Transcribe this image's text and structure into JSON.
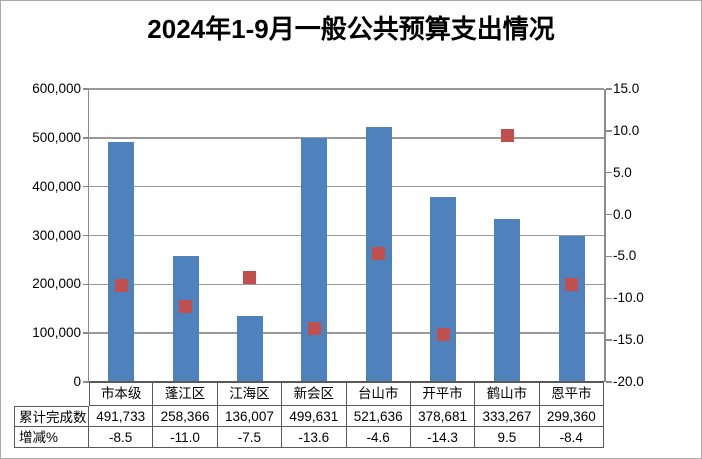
{
  "title": "2024年1-9月一般公共预算支出情况",
  "colors": {
    "bar": "#4F81BD",
    "marker": "#C0504D",
    "gridline": "#999999",
    "axis": "#8C8C8C",
    "x_axis": "#595959",
    "table_border": "#595959",
    "text": "#000000"
  },
  "chart_data": {
    "type": "bar",
    "title": "2024年1-9月一般公共预算支出情况",
    "categories": [
      "市本级",
      "蓬江区",
      "江海区",
      "新会区",
      "台山市",
      "开平市",
      "鹤山市",
      "恩平市"
    ],
    "series": [
      {
        "name": "累计完成数",
        "chart_type": "bar",
        "axis": "left",
        "color": "#4F81BD",
        "values": [
          491733,
          258366,
          136007,
          499631,
          521636,
          378681,
          333267,
          299360
        ]
      },
      {
        "name": "增减%",
        "chart_type": "scatter",
        "axis": "right",
        "color": "#C0504D",
        "values": [
          -8.5,
          -11.0,
          -7.5,
          -13.6,
          -4.6,
          -14.3,
          9.5,
          -8.4
        ]
      }
    ],
    "left_axis": {
      "min": 0,
      "max": 600000,
      "step": 100000,
      "tick_labels_top_to_bottom": [
        "600,000",
        "500,000",
        "400,000",
        "300,000",
        "200,000",
        "100,000",
        "0"
      ]
    },
    "right_axis": {
      "min": -20.0,
      "max": 15.0,
      "step": 5.0,
      "tick_labels_top_to_bottom": [
        "15.0",
        "10.0",
        "5.0",
        "0.0",
        "-5.0",
        "-10.0",
        "-15.0",
        "-20.0"
      ]
    },
    "grid": true,
    "legend": "none",
    "data_table": {
      "rows": [
        {
          "header": "累计完成数",
          "cells": [
            "491,733",
            "258,366",
            "136,007",
            "499,631",
            "521,636",
            "378,681",
            "333,267",
            "299,360"
          ]
        },
        {
          "header": "增减%",
          "cells": [
            "-8.5",
            "-11.0",
            "-7.5",
            "-13.6",
            "-4.6",
            "-14.3",
            "9.5",
            "-8.4"
          ]
        }
      ]
    }
  }
}
